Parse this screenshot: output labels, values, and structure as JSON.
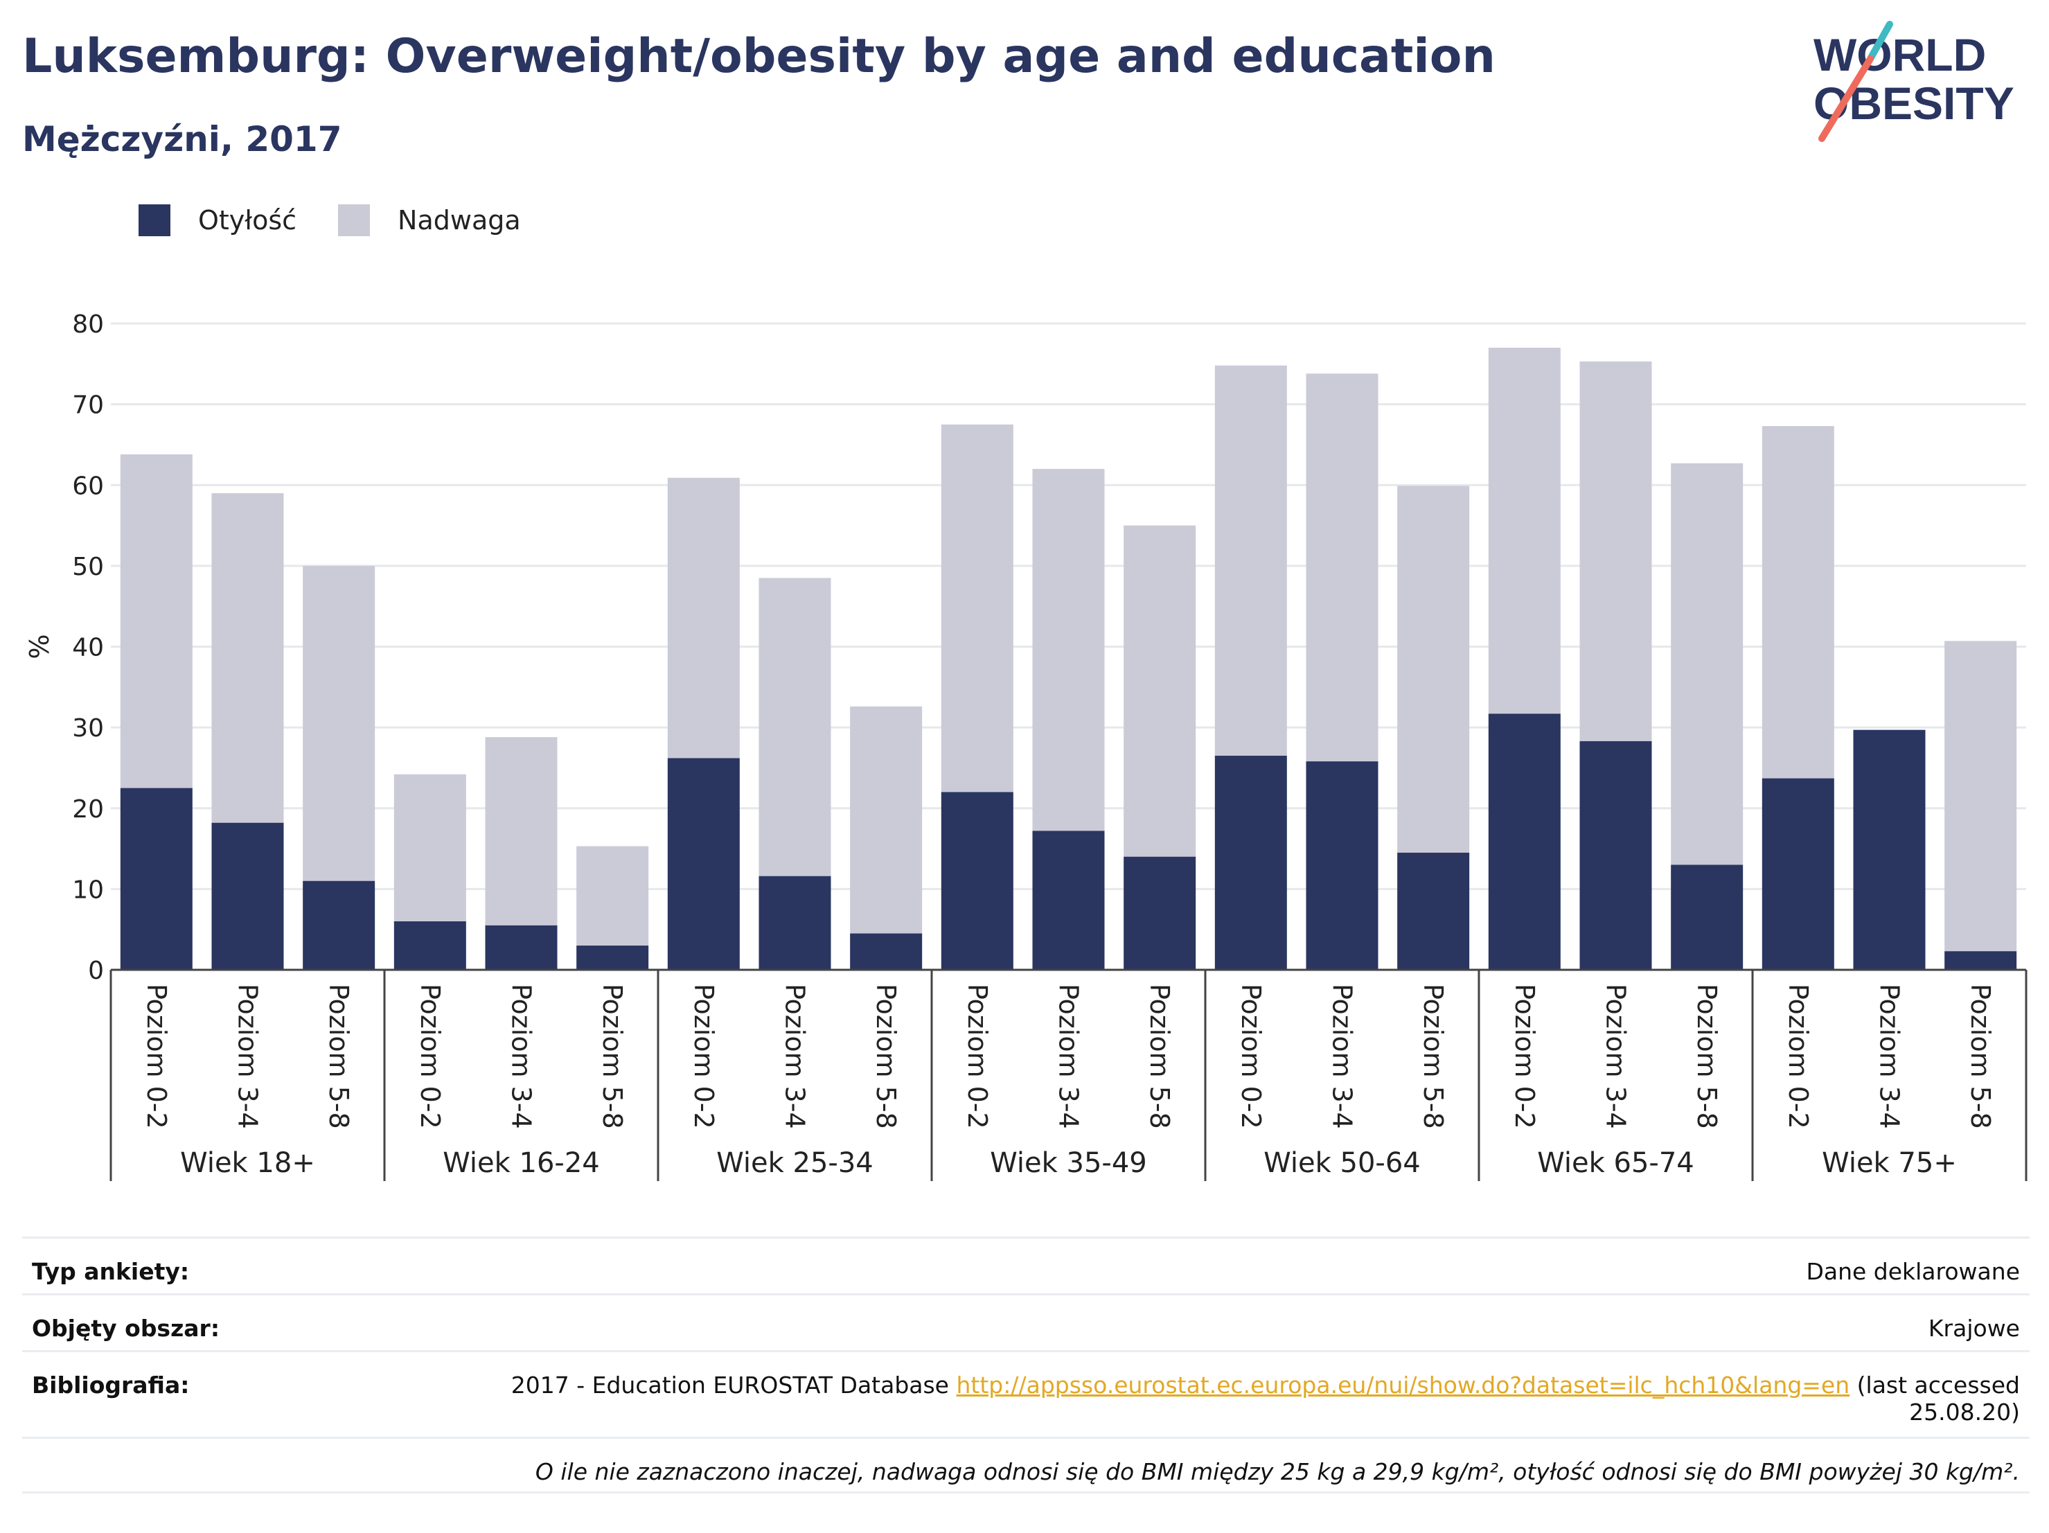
{
  "header": {
    "title": "Luksemburg: Overweight/obesity by age and education",
    "subtitle": "Mężczyźni, 2017"
  },
  "logo": {
    "line1": "WORLD",
    "line2": "OBESITY"
  },
  "colors": {
    "obesity": "#2a3560",
    "overweight": "#cacbd7",
    "grid": "#e6e8ec",
    "link": "#e3a823"
  },
  "chart_data": {
    "type": "bar",
    "stacked": true,
    "ylabel": "%",
    "ylim": [
      0,
      80
    ],
    "yticks": [
      0,
      10,
      20,
      30,
      40,
      50,
      60,
      70,
      80
    ],
    "grid": true,
    "legend_position": "top-left",
    "groups": [
      {
        "label": "Wiek 18+",
        "categories": [
          "Poziom 0-2",
          "Poziom 3-4",
          "Poziom 5-8"
        ]
      },
      {
        "label": "Wiek 16-24",
        "categories": [
          "Poziom 0-2",
          "Poziom 3-4",
          "Poziom 5-8"
        ]
      },
      {
        "label": "Wiek 25-34",
        "categories": [
          "Poziom 0-2",
          "Poziom 3-4",
          "Poziom 5-8"
        ]
      },
      {
        "label": "Wiek 35-49",
        "categories": [
          "Poziom 0-2",
          "Poziom 3-4",
          "Poziom 5-8"
        ]
      },
      {
        "label": "Wiek 50-64",
        "categories": [
          "Poziom 0-2",
          "Poziom 3-4",
          "Poziom 5-8"
        ]
      },
      {
        "label": "Wiek 65-74",
        "categories": [
          "Poziom 0-2",
          "Poziom 3-4",
          "Poziom 5-8"
        ]
      },
      {
        "label": "Wiek 75+",
        "categories": [
          "Poziom 0-2",
          "Poziom 3-4",
          "Poziom 5-8"
        ]
      }
    ],
    "series": [
      {
        "name": "Otyłość",
        "values": [
          22.5,
          18.2,
          11.0,
          6.0,
          5.5,
          3.0,
          26.2,
          11.6,
          4.5,
          22.0,
          17.2,
          14.0,
          26.5,
          25.8,
          14.5,
          31.7,
          28.3,
          13.0,
          23.7,
          29.7,
          2.3
        ]
      },
      {
        "name": "Nadwaga",
        "values": [
          41.3,
          40.8,
          39.0,
          18.2,
          23.3,
          12.3,
          34.7,
          36.9,
          28.1,
          45.5,
          44.8,
          41.0,
          48.3,
          48.0,
          45.4,
          45.3,
          47.0,
          49.7,
          43.6,
          0.0,
          38.4
        ]
      }
    ]
  },
  "info": {
    "survey_label": "Typ ankiety:",
    "survey_value": "Dane deklarowane",
    "area_label": "Objęty obszar:",
    "area_value": "Krajowe",
    "bib_label": "Bibliografia:",
    "bib_text": "2017 - Education EUROSTAT Database",
    "bib_link": "http://appsso.eurostat.ec.europa.eu/nui/show.do?dataset=ilc_hch10&lang=en",
    "bib_suffix": "(last accessed",
    "bib_date": "25.08.20)",
    "note": "O ile nie zaznaczono inaczej, nadwaga odnosi się do BMI między 25 kg a 29,9 kg/m², otyłość odnosi się do BMI powyżej 30 kg/m²."
  }
}
